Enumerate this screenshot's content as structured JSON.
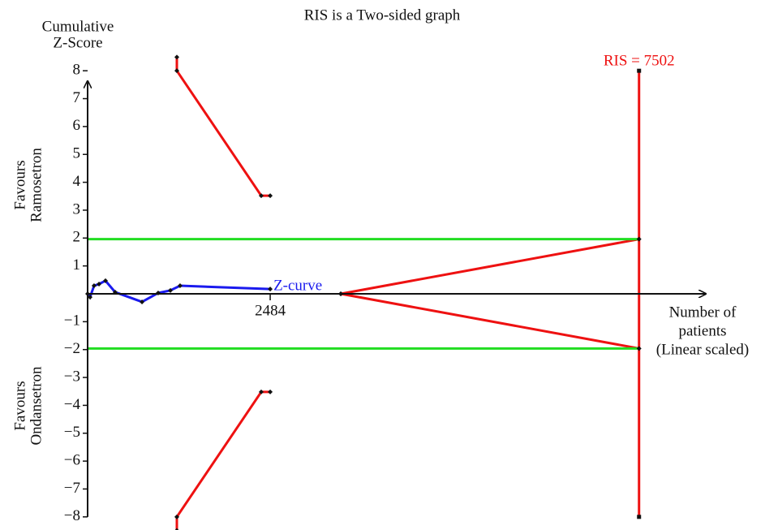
{
  "chart_data": {
    "type": "line",
    "title": "RIS is a Two-sided graph",
    "y_axis_label": [
      "Cumulative",
      "Z-Score"
    ],
    "x_axis_label": [
      "Number of",
      "patients",
      "(Linear scaled)"
    ],
    "favours_top": [
      "Favours",
      "Ramosetron"
    ],
    "favours_bottom": [
      "Favours",
      "Ondansetron"
    ],
    "xlim": [
      0,
      8410
    ],
    "ylim": [
      -8.5,
      8.5
    ],
    "xticks": [
      2484
    ],
    "yticks": [
      {
        "value": -8,
        "label": "−8"
      },
      {
        "value": -7,
        "label": "−7"
      },
      {
        "value": -6,
        "label": "−6"
      },
      {
        "value": -5,
        "label": "−5"
      },
      {
        "value": -4,
        "label": "−4"
      },
      {
        "value": -3,
        "label": "−3"
      },
      {
        "value": -2,
        "label": "−2"
      },
      {
        "value": -1,
        "label": "−1"
      },
      1,
      2,
      3,
      4,
      5,
      6,
      7,
      8
    ],
    "ris": {
      "value": 7502,
      "label": "RIS = 7502",
      "ylim": [
        -8,
        8
      ],
      "color": "#ee1111"
    },
    "series": [
      {
        "name": "Z-curve",
        "color": "#1a1aee",
        "x": [
          0,
          33,
          88,
          155,
          243,
          375,
          740,
          960,
          1126,
          1258,
          2484
        ],
        "values": [
          0,
          -0.12,
          0.29,
          0.35,
          0.47,
          0.06,
          -0.29,
          0.03,
          0.12,
          0.29,
          0.17
        ]
      },
      {
        "color": "#ee1111",
        "x": [
          1214,
          1214,
          2362,
          2484
        ],
        "values": [
          8.49,
          8,
          3.52,
          3.52
        ]
      },
      {
        "color": "#ee1111",
        "x": [
          1214,
          1214,
          2362,
          2484
        ],
        "values": [
          -8.49,
          -8,
          -3.52,
          -3.52
        ]
      },
      {
        "color": "#ee1111",
        "x": [
          3444,
          7502
        ],
        "values": [
          0,
          1.96
        ]
      },
      {
        "color": "#ee1111",
        "x": [
          3444,
          7502
        ],
        "values": [
          0,
          -1.96
        ]
      },
      {
        "color": "#22dd22",
        "x": [
          0,
          7502
        ],
        "values": [
          1.96,
          1.96
        ]
      },
      {
        "color": "#22dd22",
        "x": [
          0,
          7502
        ],
        "values": [
          -1.96,
          -1.96
        ]
      }
    ]
  }
}
